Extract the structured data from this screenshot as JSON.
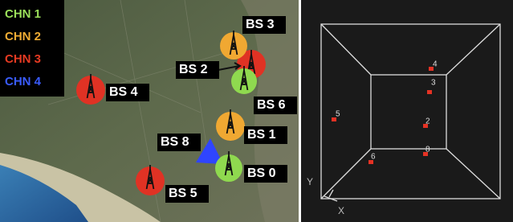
{
  "legend": {
    "entries": [
      "CHN 1",
      "CHN 2",
      "CHN 3",
      "CHN 4"
    ]
  },
  "stations": [
    "BS 3",
    "BS 2",
    "BS 6",
    "BS 4",
    "BS 1",
    "BS 8",
    "BS 0",
    "BS 5"
  ],
  "view3d": {
    "points": [
      "4",
      "3",
      "5",
      "2",
      "6",
      "8"
    ],
    "x_label": "X",
    "y_label": "Y"
  }
}
